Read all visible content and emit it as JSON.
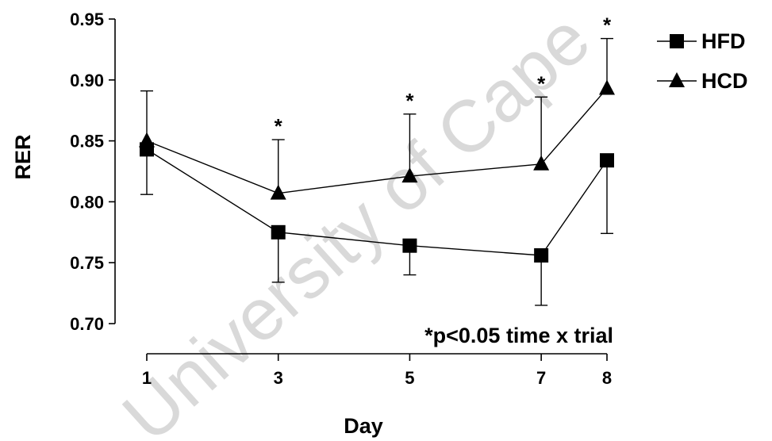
{
  "watermark": "University of Cape",
  "chart_data": {
    "type": "line",
    "title": "",
    "xlabel": "Day",
    "ylabel": "RER",
    "x": [
      1,
      3,
      5,
      7,
      8
    ],
    "x_ticks": [
      "1",
      "3",
      "5",
      "7",
      "8"
    ],
    "y_ticks": [
      "0.70",
      "0.75",
      "0.80",
      "0.85",
      "0.90",
      "0.95"
    ],
    "ylim": [
      0.7,
      0.95
    ],
    "series": [
      {
        "name": "HFD",
        "marker": "square",
        "values": [
          0.843,
          0.775,
          0.764,
          0.756,
          0.834
        ],
        "error_upper": [
          null,
          null,
          null,
          null,
          null
        ],
        "error_lower": [
          0.806,
          0.734,
          0.74,
          0.715,
          0.774
        ]
      },
      {
        "name": "HCD",
        "marker": "triangle",
        "values": [
          0.85,
          0.807,
          0.821,
          0.831,
          0.893
        ],
        "error_upper": [
          0.891,
          0.851,
          0.872,
          0.886,
          0.934
        ],
        "error_lower": [
          null,
          null,
          null,
          null,
          null
        ]
      }
    ],
    "significance_marks": [
      {
        "x": 3,
        "label": "*"
      },
      {
        "x": 5,
        "label": "*"
      },
      {
        "x": 7,
        "label": "*"
      },
      {
        "x": 8,
        "label": "*"
      }
    ],
    "annotation": "*p<0.05 time x trial",
    "legend_position": "top-right",
    "grid": false
  }
}
